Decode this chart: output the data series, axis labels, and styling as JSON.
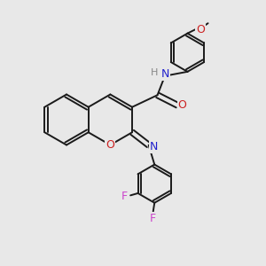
{
  "bg_color": "#e8e8e8",
  "bond_color": "#1a1a1a",
  "N_color": "#2020cc",
  "O_color": "#cc2020",
  "F_color": "#cc44cc",
  "H_color": "#888888",
  "figsize": [
    3.0,
    3.0
  ],
  "dpi": 100,
  "xlim": [
    0,
    10
  ],
  "ylim": [
    0,
    10
  ]
}
